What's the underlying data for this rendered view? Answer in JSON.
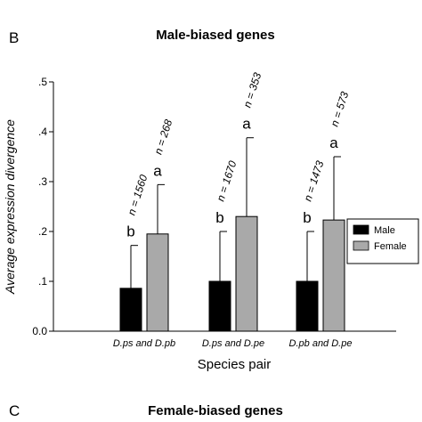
{
  "header_fragment": "",
  "panel_b_letter": "B",
  "panel_c_letter": "C",
  "panel_c_title": "Female-biased genes",
  "chart_data": {
    "type": "bar",
    "title": "Male-biased genes",
    "xlabel": "Species pair",
    "ylabel": "Average expression divergence",
    "categories": [
      "D.ps and D.pb",
      "D.ps and D.pe",
      "D.pb and D.pe"
    ],
    "ylim": [
      0,
      0.5
    ],
    "yticks": [
      0,
      0.1,
      0.2,
      0.3,
      0.4,
      0.5
    ],
    "ytick_labels": [
      "0.0",
      ".1",
      ".2",
      ".3",
      ".4",
      ".5"
    ],
    "series": [
      {
        "name": "Male",
        "color": "#000000",
        "values": [
          0.086,
          0.1,
          0.1
        ],
        "error_upper": [
          0.172,
          0.2,
          0.2
        ],
        "n_labels": [
          "n = 1560",
          "n = 1670",
          "n = 1473"
        ],
        "significance": [
          "b",
          "b",
          "b"
        ]
      },
      {
        "name": "Female",
        "color": "#a9a9a9",
        "values": [
          0.195,
          0.23,
          0.223
        ],
        "error_upper": [
          0.294,
          0.388,
          0.35
        ],
        "n_labels": [
          "n = 268",
          "n = 353",
          "n = 573"
        ],
        "significance": [
          "a",
          "a",
          "a"
        ]
      }
    ],
    "legend_position": "right",
    "grid": false
  }
}
